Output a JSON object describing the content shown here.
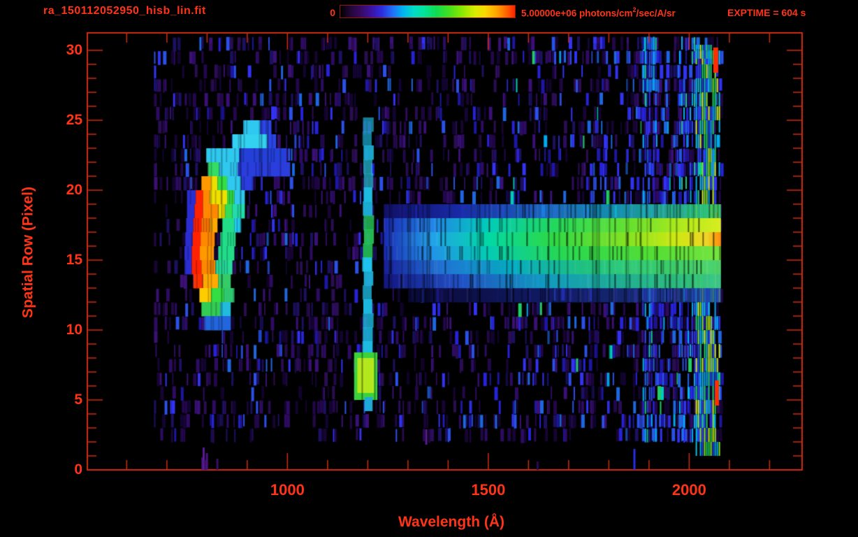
{
  "accent": {
    "text_color": "#ff3318",
    "axis_color": "#cf2d12",
    "background": "#000000"
  },
  "header": {
    "title": "ra_150112052950_hisb_lin.fit",
    "colorbar_min": "0",
    "colorbar_max_prefix": "5.00000e+06 photons/cm",
    "colorbar_max_sup": "2",
    "colorbar_max_suffix": "/sec/A/sr",
    "exptime": "EXPTIME = 604 s",
    "gradient_stops": [
      "#000000 0%",
      "#24063a 6%",
      "#380a62 12%",
      "#3c12a8 18%",
      "#2b2fe0 24%",
      "#2070f8 30%",
      "#00b4f0 36%",
      "#00dcc8 42%",
      "#00e49a 48%",
      "#10dc52 55%",
      "#40e020 62%",
      "#8ce800 70%",
      "#d8ec00 77%",
      "#f8d800 83%",
      "#ffa000 90%",
      "#ff5a00 96%",
      "#ff1e00 100%"
    ]
  },
  "chart_data": {
    "type": "heatmap",
    "title": "ra_150112052950_hisb_lin.fit",
    "xlabel": "Wavelength (Å)",
    "ylabel": "Spatial Row (Pixel)",
    "colorbar": {
      "min": 0,
      "max": 5000000,
      "units": "photons/cm^2/sec/A/sr"
    },
    "exposure_seconds": 604,
    "x_axis": {
      "range_A": [
        502,
        2281
      ],
      "major_ticks": [
        1000,
        1500,
        2000
      ],
      "minor_step": 100,
      "minor_range": [
        600,
        2200
      ]
    },
    "y_axis": {
      "range_rows": [
        0,
        31.25
      ],
      "major_ticks": [
        0,
        5,
        10,
        15,
        20,
        25,
        30
      ],
      "minor_step": 1
    },
    "data_extent": {
      "lambda_A": [
        668,
        2079
      ],
      "rows": [
        0,
        30.5
      ]
    },
    "features": {
      "noise": {
        "seed": 1337,
        "rows": [
          2,
          30
        ],
        "base_density": 0.34,
        "palette_purple": [
          "#160433",
          "#22074a",
          "#2e0b62",
          "#3a1076",
          "#1c1060",
          "#2a0d52",
          "#120430"
        ],
        "palette_blue": [
          "#1c16a2",
          "#2722d8",
          "#3232f2",
          "#2a50e8",
          "#1e66e0"
        ],
        "palette_bright": [
          "#00aaee",
          "#00ccbb",
          "#22cc66"
        ],
        "mid_blue_boost": {
          "lambda": [
            940,
            1180
          ],
          "rows": [
            12,
            24
          ],
          "extra": 0.18
        }
      },
      "dense_columns": [
        {
          "lambda": [
            1884,
            1916
          ],
          "density": 0.58
        },
        {
          "lambda": [
            1975,
            2012
          ],
          "density": 0.52
        }
      ],
      "edge_column": {
        "lambda": [
          2016,
          2079
        ],
        "rows": [
          1.5,
          30.4
        ],
        "density": 0.88,
        "palette": [
          "#2542ee",
          "#00a8ee",
          "#19d060",
          "#7fe51e",
          "#c9ec10",
          "#11bbda"
        ],
        "red_color": "#ff2e00",
        "red_accents": [
          {
            "lambda": [
              2064,
              2074
            ],
            "rows": [
              4.6,
              6.4
            ]
          },
          {
            "lambda": [
              2064,
              2074
            ],
            "rows": [
              16.6,
              18.4
            ]
          },
          {
            "lambda": [
              2060,
              2072
            ],
            "rows": [
              28.4,
              30.2
            ]
          }
        ]
      },
      "crescent_rows": [
        {
          "row": 24,
          "segs": [
            [
              890,
              932,
              "#2ec8f0"
            ],
            [
              932,
              960,
              "#2b46e8"
            ]
          ]
        },
        {
          "row": 23,
          "segs": [
            [
              863,
              950,
              "#33d2f0"
            ],
            [
              950,
              972,
              "#2b46e8"
            ]
          ]
        },
        {
          "row": 22,
          "segs": [
            [
              798,
              880,
              "#2fc8ee"
            ],
            [
              880,
              998,
              "#2440d8"
            ]
          ]
        },
        {
          "row": 21,
          "segs": [
            [
              802,
              830,
              "#33dd66"
            ],
            [
              830,
              877,
              "#2fc8ee"
            ],
            [
              877,
              1007,
              "#2a3ddd"
            ]
          ]
        },
        {
          "row": 20,
          "segs": [
            [
              786,
              810,
              "#ff9900"
            ],
            [
              810,
              826,
              "#eedd00"
            ],
            [
              826,
              850,
              "#33dd44"
            ],
            [
              850,
              885,
              "#2fc8ee"
            ],
            [
              885,
              915,
              "#2a3ddd"
            ]
          ]
        },
        {
          "row": 19,
          "segs": [
            [
              750,
              772,
              "#2a2ed0"
            ],
            [
              772,
              790,
              "#ff2200"
            ],
            [
              790,
              807,
              "#ff8800"
            ],
            [
              807,
              850,
              "#f0e000"
            ],
            [
              850,
              868,
              "#33dd44"
            ],
            [
              868,
              894,
              "#2fc8ee"
            ]
          ]
        },
        {
          "row": 18,
          "segs": [
            [
              750,
              769,
              "#2a2ed0"
            ],
            [
              769,
              790,
              "#ff2200"
            ],
            [
              790,
              828,
              "#ff8800"
            ],
            [
              828,
              845,
              "#eee000"
            ],
            [
              845,
              863,
              "#33dd55"
            ],
            [
              863,
              894,
              "#22ddaa"
            ]
          ]
        },
        {
          "row": 17,
          "segs": [
            [
              748,
              766,
              "#2a2ed0"
            ],
            [
              766,
              786,
              "#ff2200"
            ],
            [
              786,
              807,
              "#ff7700"
            ],
            [
              807,
              826,
              "#ffaa00"
            ],
            [
              838,
              868,
              "#22dd88"
            ],
            [
              868,
              885,
              "#22ccee"
            ]
          ]
        },
        {
          "row": 16,
          "segs": [
            [
              746,
              764,
              "#2a2ed0"
            ],
            [
              764,
              784,
              "#ff2200"
            ],
            [
              784,
              819,
              "#ff8800"
            ],
            [
              833,
              871,
              "#22dd88"
            ]
          ]
        },
        {
          "row": 15,
          "segs": [
            [
              744,
              762,
              "#2a2ed0"
            ],
            [
              762,
              782,
              "#ff2200"
            ],
            [
              782,
              817,
              "#ff9900"
            ],
            [
              828,
              868,
              "#22dd88"
            ]
          ]
        },
        {
          "row": 14,
          "segs": [
            [
              744,
              762,
              "#2a2ed0"
            ],
            [
              762,
              786,
              "#ff2200"
            ],
            [
              786,
              821,
              "#ff8800"
            ],
            [
              821,
              863,
              "#28dd99"
            ]
          ]
        },
        {
          "row": 13,
          "segs": [
            [
              766,
              790,
              "#ff3300"
            ],
            [
              790,
              828,
              "#ffaa00"
            ],
            [
              828,
              859,
              "#33cc66"
            ]
          ]
        },
        {
          "row": 12,
          "segs": [
            [
              781,
              810,
              "#ffcc00"
            ],
            [
              810,
              842,
              "#33dd44"
            ],
            [
              842,
              868,
              "#2fc870"
            ]
          ]
        },
        {
          "row": 11,
          "segs": [
            [
              786,
              833,
              "#33cc55"
            ],
            [
              833,
              859,
              "#22bbdd"
            ]
          ]
        },
        {
          "row": 10,
          "segs": [
            [
              793,
              859,
              "#2266dd"
            ]
          ]
        }
      ],
      "lya_line": {
        "lambda": [
          1188,
          1216
        ],
        "rows": [
          5.2,
          24.3
        ],
        "base_color": "#1fc4ee",
        "bright_segments": [
          {
            "rows": [
              14.8,
              17.3
            ],
            "color": "#2ada62"
          },
          {
            "rows": [
              20.0,
              21.6
            ],
            "color": "#29cfe8"
          }
        ],
        "blob": {
          "lambda": [
            1166,
            1224
          ],
          "rows": [
            5.0,
            8.4
          ],
          "outer": "#3bd23c",
          "inner_lambda": [
            1174,
            1216
          ],
          "inner_rows": [
            5.5,
            8.0
          ],
          "inner": "#b4e81e"
        },
        "tail": {
          "lambda": [
            1192,
            1212
          ],
          "rows": [
            4.2,
            5.2
          ],
          "color": "#1fa8d8"
        }
      },
      "continuum_rows": [
        {
          "row": 18,
          "alpha": 0.85,
          "stops": [
            [
              1240,
              "#141478"
            ],
            [
              1420,
              "#1c30c0"
            ],
            [
              1620,
              "#2070dd"
            ],
            [
              1820,
              "#18aacc"
            ],
            [
              2010,
              "#2cc87a"
            ],
            [
              2079,
              "#3ed25e"
            ]
          ]
        },
        {
          "row": 17,
          "alpha": 1.0,
          "stops": [
            [
              1240,
              "#1a2bb4"
            ],
            [
              1360,
              "#2285e8"
            ],
            [
              1500,
              "#02ccba"
            ],
            [
              1660,
              "#22d85e"
            ],
            [
              1860,
              "#6ae12e"
            ],
            [
              1990,
              "#b4ea1c"
            ],
            [
              2079,
              "#d8ee20"
            ]
          ]
        },
        {
          "row": 16,
          "alpha": 1.0,
          "stops": [
            [
              1240,
              "#1a2bb4"
            ],
            [
              1360,
              "#22a2ea"
            ],
            [
              1500,
              "#02d8a6"
            ],
            [
              1660,
              "#2ed846"
            ],
            [
              1860,
              "#8ce420"
            ],
            [
              1970,
              "#cfe912"
            ],
            [
              2045,
              "#f0d428"
            ],
            [
              2079,
              "#ff8400"
            ]
          ]
        },
        {
          "row": 15,
          "alpha": 1.0,
          "stops": [
            [
              1240,
              "#1a2bb4"
            ],
            [
              1360,
              "#2293e8"
            ],
            [
              1500,
              "#04ccb4"
            ],
            [
              1680,
              "#26d852"
            ],
            [
              1920,
              "#56df34"
            ],
            [
              2079,
              "#76e441"
            ]
          ]
        },
        {
          "row": 14,
          "alpha": 0.95,
          "stops": [
            [
              1240,
              "#18209e"
            ],
            [
              1380,
              "#2277dd"
            ],
            [
              1560,
              "#06b4c8"
            ],
            [
              1740,
              "#22cc84"
            ],
            [
              1960,
              "#40d668"
            ],
            [
              2079,
              "#52d86a"
            ]
          ]
        },
        {
          "row": 13,
          "alpha": 0.95,
          "stops": [
            [
              1240,
              "#141888"
            ],
            [
              1430,
              "#2255cc"
            ],
            [
              1640,
              "#12a2c8"
            ],
            [
              1840,
              "#22b894"
            ],
            [
              2020,
              "#34c878"
            ],
            [
              2079,
              "#40cc86"
            ]
          ]
        },
        {
          "row": 12,
          "alpha": 0.7,
          "stops": [
            [
              1300,
              "#0e0e4e"
            ],
            [
              1700,
              "#1a2a96"
            ],
            [
              2079,
              "#2252a8"
            ]
          ]
        }
      ],
      "bottom_lines": [
        {
          "lambda": 786,
          "rows": [
            0,
            0.9
          ],
          "color": "#4a1280"
        },
        {
          "lambda": 789,
          "rows": [
            0,
            1.6
          ],
          "color": "#5a1a92"
        },
        {
          "lambda": 793,
          "rows": [
            0,
            0.7
          ],
          "color": "#3a0e66"
        },
        {
          "lambda": 797,
          "rows": [
            0,
            1.2
          ],
          "color": "#4a1280"
        },
        {
          "lambda": 823,
          "rows": [
            0,
            0.8
          ],
          "color": "#3a0e66"
        },
        {
          "lambda": 1343,
          "rows": [
            1.8,
            2.9
          ],
          "color": "#5a1a92"
        },
        {
          "lambda": 1620,
          "rows": [
            0,
            0.6
          ],
          "color": "#2a0a52"
        },
        {
          "lambda": 1861,
          "rows": [
            0,
            1.5
          ],
          "color": "#2a2ce0"
        }
      ]
    }
  }
}
